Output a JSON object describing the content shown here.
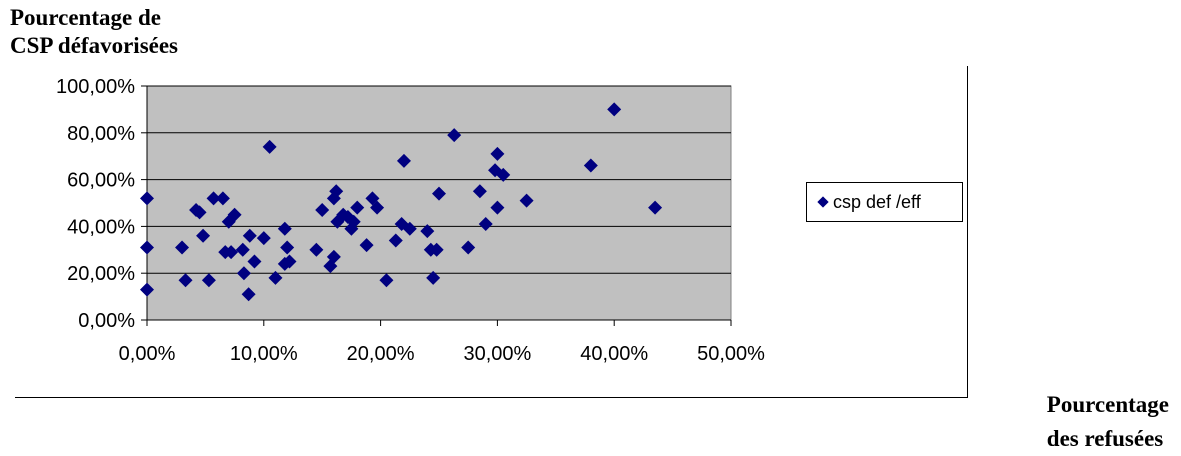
{
  "chart_data": {
    "type": "scatter",
    "ylabel_line1": "Pourcentage de",
    "ylabel_line2": "CSP défavorisées",
    "xlabel_line1": "Pourcentage",
    "xlabel_line2": "des refusées",
    "xlim": [
      0,
      0.5
    ],
    "ylim": [
      0,
      1
    ],
    "x_ticks": [
      "0,00%",
      "10,00%",
      "20,00%",
      "30,00%",
      "40,00%",
      "50,00%"
    ],
    "y_ticks": [
      "0,00%",
      "20,00%",
      "40,00%",
      "60,00%",
      "80,00%",
      "100,00%"
    ],
    "grid": "horizontal",
    "plot_background": "#c0c0c0",
    "marker": "diamond",
    "marker_color": "#000080",
    "legend_position": "right",
    "series": [
      {
        "name": "csp def /eff",
        "points": [
          [
            0.0,
            0.52
          ],
          [
            0.0,
            0.31
          ],
          [
            0.0,
            0.13
          ],
          [
            0.03,
            0.31
          ],
          [
            0.033,
            0.17
          ],
          [
            0.042,
            0.47
          ],
          [
            0.045,
            0.46
          ],
          [
            0.048,
            0.36
          ],
          [
            0.053,
            0.17
          ],
          [
            0.057,
            0.52
          ],
          [
            0.065,
            0.52
          ],
          [
            0.067,
            0.29
          ],
          [
            0.07,
            0.42
          ],
          [
            0.072,
            0.29
          ],
          [
            0.075,
            0.45
          ],
          [
            0.082,
            0.3
          ],
          [
            0.083,
            0.2
          ],
          [
            0.087,
            0.11
          ],
          [
            0.088,
            0.36
          ],
          [
            0.092,
            0.25
          ],
          [
            0.1,
            0.35
          ],
          [
            0.105,
            0.74
          ],
          [
            0.11,
            0.18
          ],
          [
            0.118,
            0.39
          ],
          [
            0.118,
            0.24
          ],
          [
            0.12,
            0.31
          ],
          [
            0.122,
            0.25
          ],
          [
            0.145,
            0.3
          ],
          [
            0.15,
            0.47
          ],
          [
            0.157,
            0.23
          ],
          [
            0.16,
            0.27
          ],
          [
            0.16,
            0.52
          ],
          [
            0.162,
            0.55
          ],
          [
            0.163,
            0.42
          ],
          [
            0.168,
            0.45
          ],
          [
            0.172,
            0.44
          ],
          [
            0.175,
            0.39
          ],
          [
            0.177,
            0.42
          ],
          [
            0.18,
            0.48
          ],
          [
            0.188,
            0.32
          ],
          [
            0.193,
            0.52
          ],
          [
            0.197,
            0.48
          ],
          [
            0.205,
            0.17
          ],
          [
            0.213,
            0.34
          ],
          [
            0.218,
            0.41
          ],
          [
            0.22,
            0.68
          ],
          [
            0.225,
            0.39
          ],
          [
            0.24,
            0.38
          ],
          [
            0.243,
            0.3
          ],
          [
            0.245,
            0.18
          ],
          [
            0.248,
            0.3
          ],
          [
            0.25,
            0.54
          ],
          [
            0.263,
            0.79
          ],
          [
            0.275,
            0.31
          ],
          [
            0.285,
            0.55
          ],
          [
            0.29,
            0.41
          ],
          [
            0.298,
            0.64
          ],
          [
            0.3,
            0.48
          ],
          [
            0.3,
            0.71
          ],
          [
            0.305,
            0.62
          ],
          [
            0.325,
            0.51
          ],
          [
            0.38,
            0.66
          ],
          [
            0.4,
            0.9
          ],
          [
            0.435,
            0.48
          ]
        ]
      }
    ]
  }
}
